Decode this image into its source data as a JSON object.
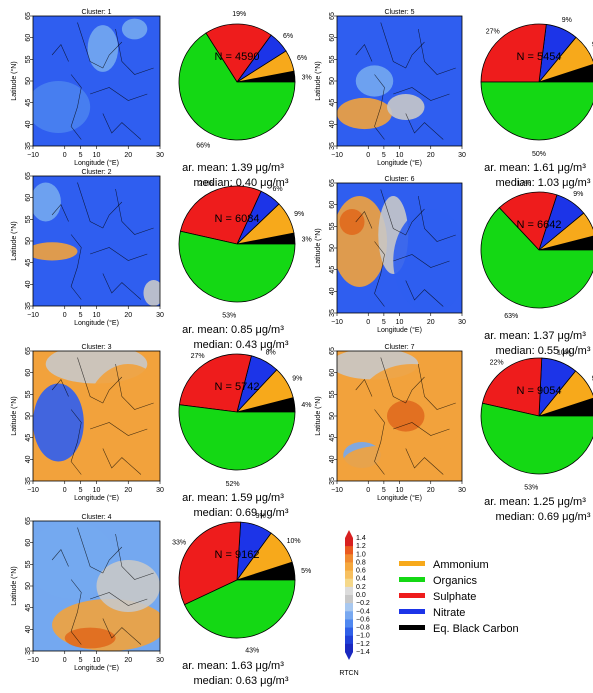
{
  "chart_data": [
    {
      "type": "pie",
      "panel": "Cluster: 1",
      "n_label": "N = 4590",
      "categories": [
        "Organics",
        "Sulphate",
        "Nitrate",
        "Ammonium",
        "Eq. Black Carbon"
      ],
      "values": [
        66,
        19,
        6,
        6,
        3
      ],
      "percent_labels": [
        "66%",
        "19%",
        "6%",
        "6%",
        "3%"
      ],
      "mean_label": "ar. mean: 1.39 μg/m³",
      "median_label": "median: 0.40 μg/m³"
    },
    {
      "type": "pie",
      "panel": "Cluster: 2",
      "n_label": "N = 6084",
      "categories": [
        "Organics",
        "Sulphate",
        "Nitrate",
        "Ammonium",
        "Eq. Black Carbon"
      ],
      "values": [
        53,
        28,
        6,
        9,
        3
      ],
      "percent_labels": [
        "53%",
        "28%",
        "6%",
        "9%",
        "3%"
      ],
      "mean_label": "ar. mean: 0.85 μg/m³",
      "median_label": "median: 0.43 μg/m³"
    },
    {
      "type": "pie",
      "panel": "Cluster: 3",
      "n_label": "N = 5742",
      "categories": [
        "Organics",
        "Sulphate",
        "Nitrate",
        "Ammonium",
        "Eq. Black Carbon"
      ],
      "values": [
        52,
        27,
        8,
        9,
        4
      ],
      "percent_labels": [
        "52%",
        "27%",
        "8%",
        "9%",
        "4%"
      ],
      "mean_label": "ar. mean: 1.59 μg/m³",
      "median_label": "median: 0.69 μg/m³"
    },
    {
      "type": "pie",
      "panel": "Cluster: 4",
      "n_label": "N = 9162",
      "categories": [
        "Organics",
        "Sulphate",
        "Nitrate",
        "Ammonium",
        "Eq. Black Carbon"
      ],
      "values": [
        43,
        33,
        9,
        10,
        5
      ],
      "percent_labels": [
        "43%",
        "33%",
        "9%",
        "10%",
        "5%"
      ],
      "mean_label": "ar. mean: 1.63 μg/m³",
      "median_label": "median: 0.63 μg/m³"
    },
    {
      "type": "pie",
      "panel": "Cluster: 5",
      "n_label": "N = 5454",
      "categories": [
        "Organics",
        "Sulphate",
        "Nitrate",
        "Ammonium",
        "Eq. Black Carbon"
      ],
      "values": [
        50,
        27,
        9,
        9,
        5
      ],
      "percent_labels": [
        "50%",
        "27%",
        "9%",
        "9%",
        "5%"
      ],
      "mean_label": "ar. mean: 1.61 μg/m³",
      "median_label": "median: 1.03 μg/m³"
    },
    {
      "type": "pie",
      "panel": "Cluster: 6",
      "n_label": "N = 6642",
      "categories": [
        "Organics",
        "Sulphate",
        "Nitrate",
        "Ammonium",
        "Eq. Black Carbon"
      ],
      "values": [
        63,
        17,
        9,
        7,
        4
      ],
      "percent_labels": [
        "63%",
        "17%",
        "9%",
        "7%",
        "4%"
      ],
      "mean_label": "ar. mean: 1.37 μg/m³",
      "median_label": "median: 0.55 μg/m³"
    },
    {
      "type": "pie",
      "panel": "Cluster: 7",
      "n_label": "N = 9054",
      "categories": [
        "Organics",
        "Sulphate",
        "Nitrate",
        "Ammonium",
        "Eq. Black Carbon"
      ],
      "values": [
        53,
        22,
        10,
        9,
        5
      ],
      "percent_labels": [
        "53%",
        "22%",
        "10%",
        "9%",
        "5%"
      ],
      "mean_label": "ar. mean: 1.25 μg/m³",
      "median_label": "median: 0.69 μg/m³"
    }
  ],
  "maps": {
    "x_label": "Longitude (°E)",
    "y_label": "Latitude (°N)",
    "x_ticks": [
      "−10",
      "0",
      "5",
      "10",
      "20",
      "30"
    ],
    "y_ticks": [
      "35",
      "40",
      "45",
      "50",
      "55",
      "60",
      "65"
    ],
    "field_descriptions": [
      "low blue field with lighter band over North Sea",
      "orange band over Bay of Biscay, blue elsewhere",
      "blue west, orange over central and eastern Europe",
      "orange over Mediterranean and south, blue north-west",
      "orange over Iberia, blue north",
      "orange over west Atlantic and Iberia, blue east",
      "orange over most of continent, grey north"
    ]
  },
  "colorbar": {
    "title": "RTCN",
    "ticks": [
      "1.4",
      "1.2",
      "1.0",
      "0.8",
      "0.6",
      "0.4",
      "0.2",
      "0.0",
      "−0.2",
      "−0.4",
      "−0.6",
      "−0.8",
      "−1.0",
      "−1.2",
      "−1.4"
    ],
    "range": [
      -1.4,
      1.4
    ]
  },
  "legend": {
    "items": [
      {
        "label": "Ammonium",
        "color": "#f7a91b"
      },
      {
        "label": "Organics",
        "color": "#14d814"
      },
      {
        "label": "Sulphate",
        "color": "#ee1c1c"
      },
      {
        "label": "Nitrate",
        "color": "#1c34e8"
      },
      {
        "label": "Eq. Black Carbon",
        "color": "#000000"
      }
    ]
  },
  "colors": {
    "Organics": "#14d814",
    "Sulphate": "#ee1c1c",
    "Nitrate": "#1c34e8",
    "Ammonium": "#f7a91b",
    "Eq. Black Carbon": "#000000"
  }
}
